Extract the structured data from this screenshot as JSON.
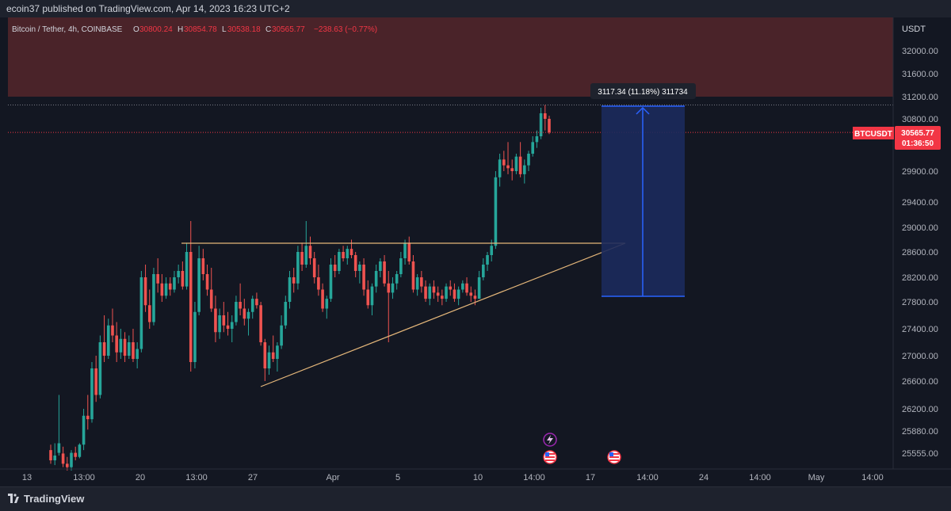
{
  "header": {
    "publish_text": "ecoin37 published on TradingView.com, Apr 14, 2023 16:23 UTC+2"
  },
  "legend": {
    "symbol": "Bitcoin / Tether, 4h, COINBASE",
    "o_label": "O",
    "o_value": "30800.24",
    "h_label": "H",
    "h_value": "30854.78",
    "l_label": "L",
    "l_value": "30538.18",
    "c_label": "C",
    "c_value": "30565.77",
    "change": "−238.63 (−0.77%)"
  },
  "price_tag": {
    "symbol": "BTCUSDT",
    "price": "30565.77",
    "countdown": "01:36:50"
  },
  "measure": {
    "label": "3117.34 (11.18%) 311734",
    "from": 27900,
    "to": 31017.34
  },
  "footer": {
    "brand": "TradingView"
  },
  "colors": {
    "background": "#131722",
    "up": "#26a69a",
    "down": "#ef5350",
    "resistance_zone": "#4a2329",
    "triangle": "#e5b77a",
    "measure_fill": "#1c2a5c",
    "measure_line": "#2962ff",
    "price_line": "#f23645"
  },
  "icons": [
    "lightning-event-icon",
    "us-flag-event-icon"
  ],
  "chart_data": {
    "type": "candlestick",
    "title": "Bitcoin / Tether, 4h, COINBASE",
    "y_axis": {
      "unit": "USDT",
      "labels": [
        "32000.00",
        "31600.00",
        "31200.00",
        "30800.00",
        "29900.00",
        "29400.00",
        "29000.00",
        "28600.00",
        "28200.00",
        "27800.00",
        "27400.00",
        "27000.00",
        "26600.00",
        "26200.00",
        "25880.00",
        "25555.00"
      ]
    },
    "x_axis": {
      "labels": [
        "13",
        "13:00",
        "20",
        "13:00",
        "27",
        "Apr",
        "5",
        "10",
        "14:00",
        "17",
        "14:00",
        "24",
        "14:00",
        "May",
        "14:00"
      ]
    },
    "resistance_zone": [
      31200,
      33000
    ],
    "dotted_level": 31050,
    "last_price": 30565.77,
    "triangle": {
      "top": 28750,
      "bottom": 26550,
      "apex": 28750
    },
    "candles_ohlc": [
      [
        25600,
        25680,
        25400,
        25450
      ],
      [
        25450,
        25700,
        25380,
        25520
      ],
      [
        25560,
        26400,
        25520,
        25700
      ],
      [
        25550,
        25650,
        25350,
        25400
      ],
      [
        25400,
        25500,
        25300,
        25350
      ],
      [
        25350,
        25600,
        25300,
        25560
      ],
      [
        25560,
        25650,
        25450,
        25500
      ],
      [
        25500,
        25700,
        25480,
        25680
      ],
      [
        25680,
        26200,
        25600,
        26100
      ],
      [
        26100,
        26400,
        25900,
        26050
      ],
      [
        26050,
        26900,
        26000,
        26800
      ],
      [
        26800,
        27000,
        26300,
        26400
      ],
      [
        26400,
        27300,
        26350,
        27200
      ],
      [
        27200,
        27600,
        26900,
        27000
      ],
      [
        27000,
        27550,
        26950,
        27450
      ],
      [
        27450,
        27700,
        27200,
        27300
      ],
      [
        27300,
        27500,
        26900,
        27050
      ],
      [
        27050,
        27400,
        26950,
        27250
      ],
      [
        27250,
        27350,
        26900,
        27000
      ],
      [
        27000,
        27300,
        26950,
        27200
      ],
      [
        27200,
        27400,
        26900,
        26950
      ],
      [
        26950,
        27200,
        26800,
        27100
      ],
      [
        27100,
        28300,
        27050,
        28200
      ],
      [
        28200,
        28400,
        27650,
        27750
      ],
      [
        27750,
        28000,
        27400,
        27500
      ],
      [
        27500,
        28350,
        27450,
        28250
      ],
      [
        28250,
        28500,
        27950,
        28100
      ],
      [
        28100,
        28250,
        27800,
        27900
      ],
      [
        27900,
        28200,
        27850,
        28100
      ],
      [
        28100,
        28200,
        27900,
        28000
      ],
      [
        28000,
        28300,
        27950,
        28200
      ],
      [
        28200,
        28400,
        28100,
        28300
      ],
      [
        28300,
        28450,
        28000,
        28050
      ],
      [
        28050,
        28750,
        28000,
        28600
      ],
      [
        28600,
        29100,
        26750,
        26900
      ],
      [
        26900,
        27800,
        26800,
        27650
      ],
      [
        27650,
        28700,
        27600,
        28500
      ],
      [
        28500,
        28650,
        28150,
        28250
      ],
      [
        28250,
        28400,
        27900,
        28000
      ],
      [
        28000,
        28350,
        27650,
        27700
      ],
      [
        27700,
        27900,
        27200,
        27350
      ],
      [
        27350,
        27700,
        27250,
        27600
      ],
      [
        27600,
        27800,
        27350,
        27450
      ],
      [
        27450,
        27650,
        27300,
        27400
      ],
      [
        27400,
        27600,
        27200,
        27500
      ],
      [
        27500,
        27900,
        27450,
        27800
      ],
      [
        27800,
        28100,
        27600,
        27700
      ],
      [
        27700,
        27850,
        27450,
        27550
      ],
      [
        27550,
        27700,
        27300,
        27650
      ],
      [
        27650,
        27900,
        27550,
        27850
      ],
      [
        27850,
        27950,
        27700,
        27750
      ],
      [
        27750,
        27800,
        27150,
        27200
      ],
      [
        27200,
        27250,
        26600,
        26800
      ],
      [
        26800,
        27150,
        26700,
        27050
      ],
      [
        27050,
        27300,
        26900,
        26950
      ],
      [
        26950,
        27200,
        26750,
        27150
      ],
      [
        27150,
        27600,
        27100,
        27450
      ],
      [
        27450,
        27900,
        27400,
        27800
      ],
      [
        27800,
        28300,
        27700,
        28200
      ],
      [
        28200,
        28350,
        27950,
        28100
      ],
      [
        28100,
        28700,
        28000,
        28600
      ],
      [
        28600,
        28750,
        28300,
        28400
      ],
      [
        28400,
        29100,
        28350,
        28700
      ],
      [
        28700,
        28850,
        28400,
        28500
      ],
      [
        28500,
        28600,
        28100,
        28200
      ],
      [
        28200,
        28400,
        27900,
        28000
      ],
      [
        28000,
        28100,
        27650,
        27700
      ],
      [
        27700,
        27900,
        27550,
        27850
      ],
      [
        27850,
        28500,
        27800,
        28400
      ],
      [
        28400,
        28550,
        28200,
        28300
      ],
      [
        28300,
        28650,
        28250,
        28600
      ],
      [
        28600,
        28700,
        28450,
        28500
      ],
      [
        28500,
        28700,
        28400,
        28650
      ],
      [
        28650,
        28800,
        28500,
        28550
      ],
      [
        28550,
        28600,
        28200,
        28300
      ],
      [
        28300,
        28450,
        28100,
        28400
      ],
      [
        28400,
        28500,
        27900,
        28000
      ],
      [
        28000,
        28150,
        27700,
        27750
      ],
      [
        27750,
        28100,
        27600,
        28050
      ],
      [
        28050,
        28400,
        27950,
        28300
      ],
      [
        28300,
        28500,
        28200,
        28450
      ],
      [
        28450,
        28550,
        28050,
        28100
      ],
      [
        28100,
        28300,
        27200,
        27950
      ],
      [
        27950,
        28200,
        27850,
        28100
      ],
      [
        28100,
        28300,
        28000,
        28250
      ],
      [
        28250,
        28600,
        28200,
        28500
      ],
      [
        28500,
        28800,
        28400,
        28750
      ],
      [
        28750,
        28850,
        28400,
        28450
      ],
      [
        28450,
        28550,
        27950,
        28000
      ],
      [
        28000,
        28250,
        27900,
        28200
      ],
      [
        28200,
        28300,
        27950,
        28050
      ],
      [
        28050,
        28150,
        27800,
        27850
      ],
      [
        27850,
        28100,
        27750,
        28050
      ],
      [
        28050,
        28150,
        27850,
        27950
      ],
      [
        27950,
        28050,
        27800,
        27900
      ],
      [
        27900,
        28000,
        27750,
        27850
      ],
      [
        27850,
        28100,
        27800,
        28050
      ],
      [
        28050,
        28150,
        27900,
        28000
      ],
      [
        28000,
        28100,
        27800,
        27850
      ],
      [
        27850,
        28050,
        27750,
        28000
      ],
      [
        28000,
        28150,
        27950,
        28100
      ],
      [
        28100,
        28200,
        27900,
        27950
      ],
      [
        27950,
        28050,
        27800,
        27900
      ],
      [
        27900,
        28000,
        27750,
        27850
      ],
      [
        27850,
        28300,
        27850,
        28200
      ],
      [
        28200,
        28500,
        28150,
        28400
      ],
      [
        28400,
        28600,
        28300,
        28550
      ],
      [
        28550,
        28800,
        28450,
        28700
      ],
      [
        28700,
        29900,
        28650,
        29800
      ],
      [
        29800,
        30200,
        29650,
        30100
      ],
      [
        30100,
        30250,
        29900,
        30000
      ],
      [
        30000,
        30400,
        29850,
        29950
      ],
      [
        29950,
        30100,
        29750,
        29900
      ],
      [
        29900,
        30200,
        29850,
        30150
      ],
      [
        30150,
        30400,
        29800,
        29850
      ],
      [
        29850,
        30100,
        29700,
        30000
      ],
      [
        30000,
        30250,
        29900,
        30200
      ],
      [
        30200,
        30500,
        30150,
        30400
      ],
      [
        30400,
        30600,
        30300,
        30500
      ],
      [
        30500,
        31000,
        30450,
        30900
      ],
      [
        30900,
        31050,
        30600,
        30800
      ],
      [
        30800,
        30855,
        30538,
        30566
      ]
    ]
  }
}
